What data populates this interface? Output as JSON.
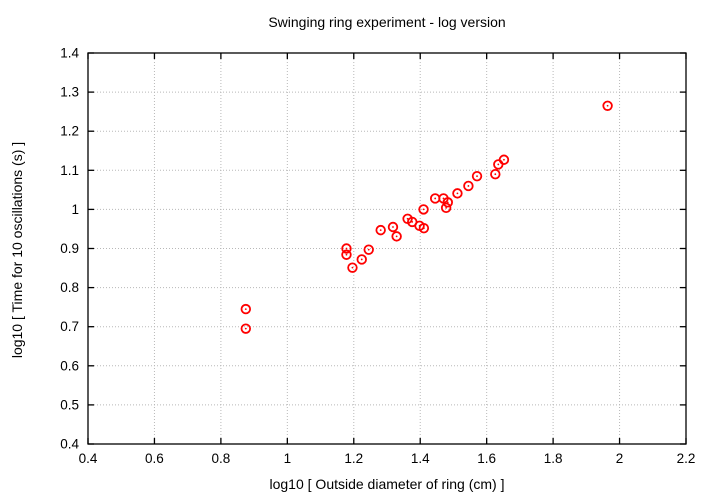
{
  "chart_data": {
    "type": "scatter",
    "title": "Swinging ring experiment - log version",
    "xlabel": "log10 [ Outside diameter of ring (cm) ]",
    "ylabel": "log10 [ Time for 10 oscillations (s) ]",
    "xlim": [
      0.4,
      2.2
    ],
    "ylim": [
      0.4,
      1.4
    ],
    "xticks": [
      0.4,
      0.6,
      0.8,
      1,
      1.2,
      1.4,
      1.6,
      1.8,
      2,
      2.2
    ],
    "yticks": [
      0.4,
      0.5,
      0.6,
      0.7,
      0.8,
      0.9,
      1,
      1.1,
      1.2,
      1.3,
      1.4
    ],
    "grid": true,
    "legend": "none",
    "marker": {
      "shape": "open-circle-with-center-dot",
      "color": "#ff0000"
    },
    "frame_color": "#000000",
    "grid_color": "#b8b8b8",
    "points": [
      [
        0.875,
        0.745
      ],
      [
        0.875,
        0.695
      ],
      [
        1.178,
        0.9
      ],
      [
        1.178,
        0.884
      ],
      [
        1.196,
        0.851
      ],
      [
        1.224,
        0.872
      ],
      [
        1.245,
        0.897
      ],
      [
        1.281,
        0.947
      ],
      [
        1.318,
        0.955
      ],
      [
        1.329,
        0.931
      ],
      [
        1.362,
        0.976
      ],
      [
        1.376,
        0.968
      ],
      [
        1.398,
        0.958
      ],
      [
        1.411,
        0.952
      ],
      [
        1.41,
        1.0
      ],
      [
        1.445,
        1.028
      ],
      [
        1.47,
        1.028
      ],
      [
        1.483,
        1.018
      ],
      [
        1.478,
        1.004
      ],
      [
        1.512,
        1.041
      ],
      [
        1.545,
        1.06
      ],
      [
        1.571,
        1.085
      ],
      [
        1.626,
        1.09
      ],
      [
        1.635,
        1.115
      ],
      [
        1.652,
        1.127
      ],
      [
        1.964,
        1.265
      ]
    ]
  }
}
